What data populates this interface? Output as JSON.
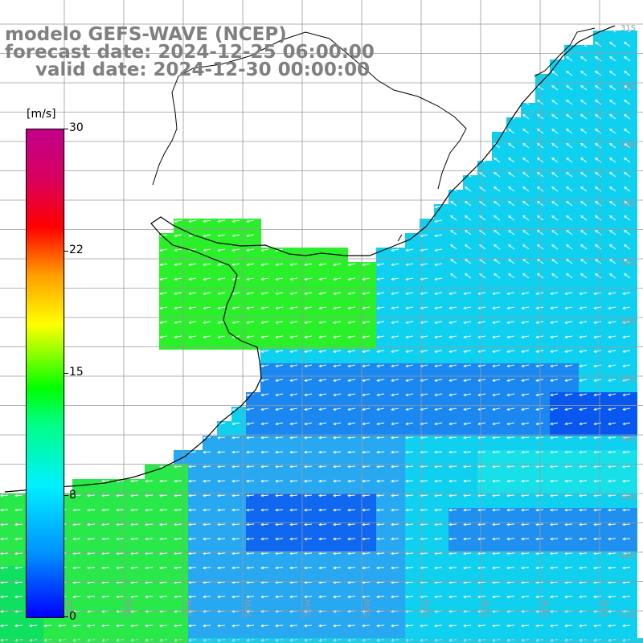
{
  "title": {
    "model": "modelo GEFS-WAVE (NCEP)",
    "forecast": "forecast date: 2024-12-25 06:00:00",
    "valid": "valid date: 2024-12-30 00:00:00"
  },
  "colorbar": {
    "unit": "[m/s]",
    "ticks": [
      "30",
      "22",
      "15",
      "8",
      "0"
    ],
    "colors": [
      "#0000ff",
      "#0090ff",
      "#00f0ff",
      "#00ff80",
      "#00ff00",
      "#a0ff00",
      "#ffff00",
      "#ffa000",
      "#ff0000",
      "#c0008a"
    ]
  },
  "lat_labels": [
    "31S",
    "32S",
    "33S",
    "34S",
    "35S",
    "36S",
    "37S",
    "38S",
    "39S",
    "40S",
    "41S"
  ],
  "lon_labels": [
    "60W",
    "59W",
    "58W",
    "57W",
    "56W",
    "55W",
    "54W",
    "53W",
    "52W",
    "51W"
  ]
}
